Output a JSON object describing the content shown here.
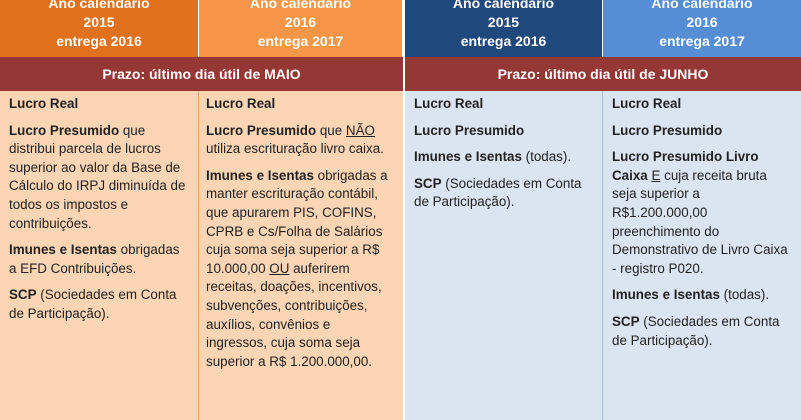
{
  "headers": [
    {
      "line1": "Ano calendário",
      "line2": "2015",
      "line3": "entrega 2016",
      "color": "#e2711d"
    },
    {
      "line1": "Ano calendário",
      "line2": "2016",
      "line3": "entrega 2017",
      "color": "#f79646"
    },
    {
      "line1": "Ano calendário",
      "line2": "2015",
      "line3": "entrega 2016",
      "color": "#1f497d"
    },
    {
      "line1": "Ano calendário",
      "line2": "2016",
      "line3": "entrega 2017",
      "color": "#558ed5"
    }
  ],
  "prazo": {
    "maio": "Prazo: último dia útil de MAIO",
    "junho": "Prazo: último dia útil de JUNHO"
  },
  "col1": {
    "lucro_real": "Lucro Real",
    "lp_bold": "Lucro Presumido",
    "lp_text": " que distribui parcela de lucros superior ao valor da Base de Cálculo do IRPJ diminuída  de todos os impostos e contribuições.",
    "imunes_bold": "Imunes e Isentas",
    "imunes_text": " obrigadas a EFD Contribuições.",
    "scp_bold": "SCP",
    "scp_text": " (Sociedades em Conta de Participação)."
  },
  "col2": {
    "lucro_real": "Lucro Real",
    "lp_bold": "Lucro Presumido",
    "lp_pre": " que ",
    "lp_nao": "NÃO",
    "lp_post": " utiliza escrituração livro caixa.",
    "imunes_bold": "Imunes e Isentas",
    "imunes_pre": " obrigadas a manter escrituração contábil, que apurarem PIS, COFINS, CPRB e Cs/Folha de Salários cuja soma seja superior a R$ 10.000,00 ",
    "imunes_ou": "OU",
    "imunes_post": " auferirem receitas, doações, incentivos, subvenções, contribuições, auxílios, convênios e ingressos, cuja soma seja superior a R$ 1.200.000,00."
  },
  "col3": {
    "lucro_real": "Lucro Real",
    "lucro_presumido": "Lucro Presumido",
    "imunes_bold": "Imunes e Isentas",
    "imunes_text": " (todas).",
    "scp_bold": "SCP",
    "scp_text": " (Sociedades em Conta de Participação)."
  },
  "col4": {
    "lucro_real": "Lucro Real",
    "lucro_presumido": "Lucro Presumido",
    "lplc_bold": "Lucro Presumido Livro Caixa",
    "lplc_sp": " ",
    "lplc_e": "E",
    "lplc_text": " cuja receita bruta seja superior a R$1.200.000,00 preenchimento do Demonstrativo de Livro Caixa - registro P020.",
    "imunes_bold": "Imunes e Isentas",
    "imunes_text": " (todas).",
    "scp_bold": "SCP",
    "scp_text": " (Sociedades em Conta de Participação)."
  }
}
